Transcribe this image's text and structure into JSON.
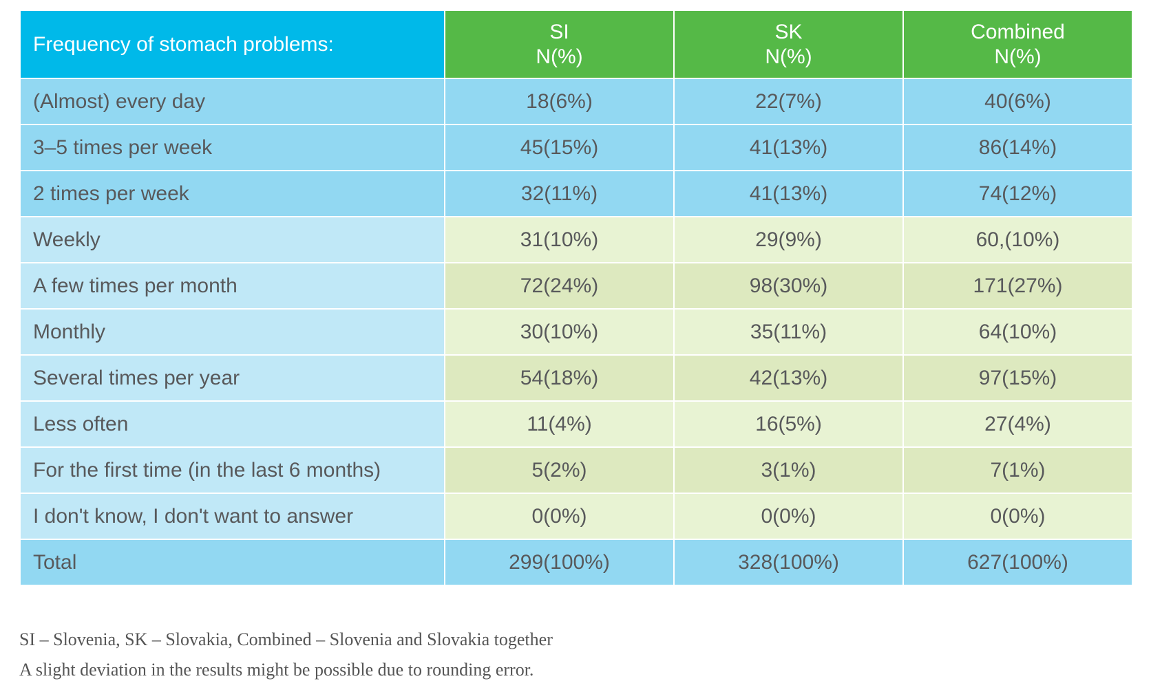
{
  "table": {
    "header": {
      "label": "Frequency of stomach problems:",
      "columns": [
        {
          "name": "SI",
          "unit": "N(%)"
        },
        {
          "name": "SK",
          "unit": "N(%)"
        },
        {
          "name": "Combined",
          "unit": "N(%)"
        }
      ]
    },
    "rows": [
      {
        "label": "(Almost) every day",
        "tone": "blue",
        "values": [
          "18(6%)",
          "22(7%)",
          "40(6%)"
        ]
      },
      {
        "label": "3–5 times per week",
        "tone": "blue",
        "values": [
          "45(15%)",
          "41(13%)",
          "86(14%)"
        ]
      },
      {
        "label": "2 times per week",
        "tone": "blue",
        "values": [
          "32(11%)",
          "41(13%)",
          "74(12%)"
        ]
      },
      {
        "label": "Weekly",
        "tone": "light",
        "values": [
          "31(10%)",
          "29(9%)",
          "60,(10%)"
        ]
      },
      {
        "label": "A few times per month",
        "tone": "green",
        "values": [
          "72(24%)",
          "98(30%)",
          "171(27%)"
        ]
      },
      {
        "label": "Monthly",
        "tone": "light",
        "values": [
          "30(10%)",
          "35(11%)",
          "64(10%)"
        ]
      },
      {
        "label": "Several times per year",
        "tone": "green",
        "values": [
          "54(18%)",
          "42(13%)",
          "97(15%)"
        ]
      },
      {
        "label": "Less often",
        "tone": "light",
        "values": [
          "11(4%)",
          "16(5%)",
          "27(4%)"
        ]
      },
      {
        "label": "For the first time (in the last 6 months)",
        "tone": "green",
        "values": [
          "5(2%)",
          "3(1%)",
          "7(1%)"
        ]
      },
      {
        "label": "I don't know, I don't want to answer",
        "tone": "light",
        "values": [
          "0(0%)",
          "0(0%)",
          "0(0%)"
        ]
      },
      {
        "label": "Total",
        "tone": "blue",
        "values": [
          "299(100%)",
          "328(100%)",
          "627(100%)"
        ]
      }
    ]
  },
  "notes": {
    "legend": "SI – Slovenia, SK – Slovakia, Combined – Slovenia and Slovakia together",
    "rounding": "A slight deviation in the results might be possible due to rounding error."
  },
  "colors": {
    "header_label_bg": "#00b9e9",
    "header_col_bg": "#55b947",
    "row_blue": "#92d8f2",
    "row_label_light": "#c0e8f7",
    "cell_light": "#e8f3d3",
    "cell_green": "#dde9bf",
    "text": "#58595b"
  }
}
